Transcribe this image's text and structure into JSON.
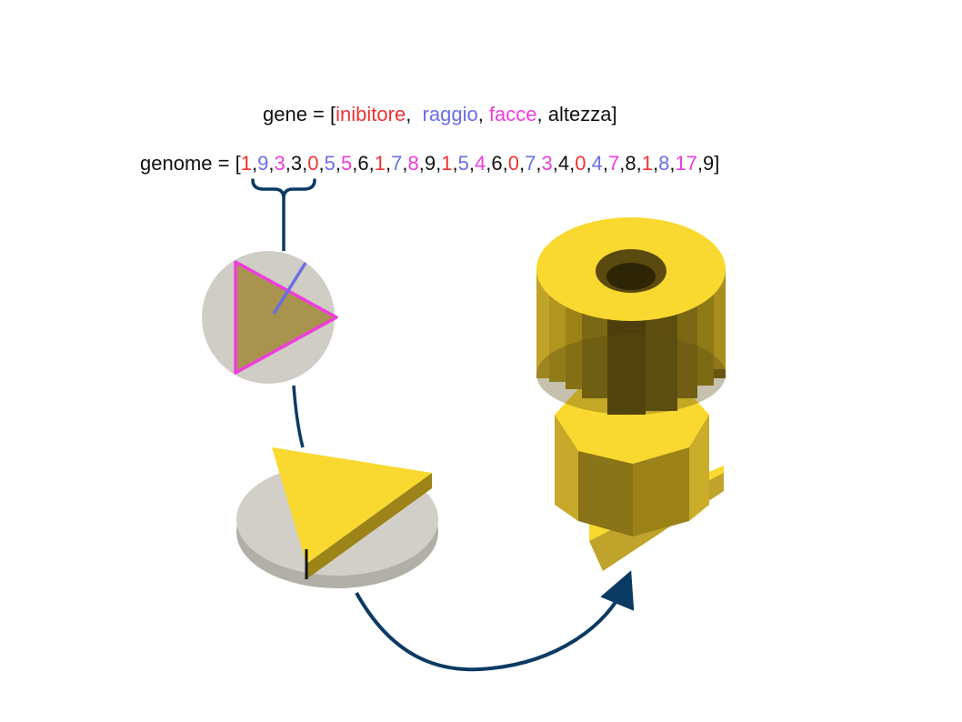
{
  "colors": {
    "black": "#111111",
    "red": "#ee3333",
    "blue": "#6a6ee6",
    "magenta": "#f03cdc",
    "connector": "#0b3a63",
    "gold": "#f9d92f",
    "disc": "#cfcdc5"
  },
  "gene_line": {
    "prefix": "gene = [",
    "fields": [
      {
        "text": "inibitore",
        "color": "red"
      },
      {
        "text": "raggio",
        "color": "blue"
      },
      {
        "text": "facce",
        "color": "magenta"
      },
      {
        "text": "altezza",
        "color": "black"
      }
    ],
    "separators": [
      ",  ",
      ", ",
      ", "
    ],
    "suffix": "]"
  },
  "genome_line": {
    "prefix": "genome = [",
    "values": [
      "1",
      "9",
      "3",
      "3",
      "0",
      "5",
      "5",
      "6",
      "1",
      "7",
      "8",
      "9",
      "1",
      "5",
      "4",
      "6",
      "0",
      "7",
      "3",
      "4",
      "0",
      "4",
      "7",
      "8",
      "1",
      "8",
      "17",
      "9"
    ],
    "color_cycle": [
      "red",
      "blue",
      "magenta",
      "black"
    ],
    "separator": ",",
    "suffix": "]"
  },
  "icons": [
    "curly-brace-icon",
    "gene-circle-triangle-icon",
    "extruded-triangle-on-disc-icon",
    "stacked-3d-shape-icon",
    "curved-arrow-icon"
  ]
}
